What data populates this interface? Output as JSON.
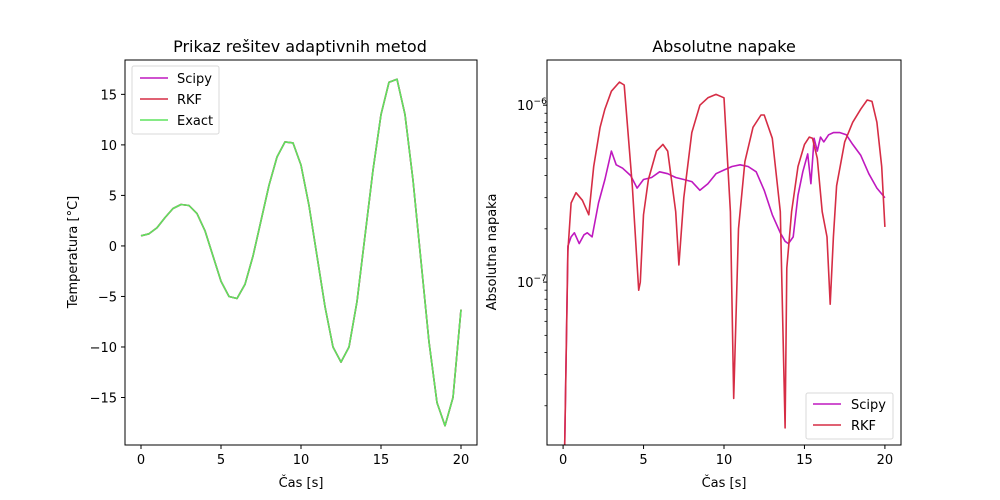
{
  "chart_data": [
    {
      "type": "line",
      "title": "Prikaz rešitev adaptivnih metod",
      "xlabel": "Čas [s]",
      "ylabel": "Temperatura [°C]",
      "xlim": [
        -1,
        21
      ],
      "ylim": [
        -19.7,
        18.4
      ],
      "xticks": [
        0,
        5,
        10,
        15,
        20
      ],
      "yticks": [
        -15,
        -10,
        -5,
        0,
        5,
        10,
        15
      ],
      "grid": false,
      "legend_position": "upper-left",
      "legend": [
        "Scipy",
        "RKF",
        "Exact"
      ],
      "series": [
        {
          "name": "Scipy",
          "color": "#bf19bf",
          "x": [
            0,
            0.5,
            1,
            1.5,
            2,
            2.5,
            3,
            3.5,
            4,
            4.5,
            5,
            5.5,
            6,
            6.5,
            7,
            7.5,
            8,
            8.5,
            9,
            9.5,
            10,
            10.5,
            11,
            11.5,
            12,
            12.5,
            13,
            13.5,
            14,
            14.5,
            15,
            15.5,
            16,
            16.5,
            17,
            17.5,
            18,
            18.5,
            19,
            19.5,
            20
          ],
          "values": [
            1.0,
            1.2,
            1.8,
            2.8,
            3.7,
            4.1,
            4.0,
            3.2,
            1.5,
            -1.0,
            -3.5,
            -5.0,
            -5.2,
            -3.8,
            -1.0,
            2.5,
            6.0,
            8.8,
            10.3,
            10.2,
            8.0,
            4.0,
            -1.0,
            -6.0,
            -10.0,
            -11.5,
            -10.0,
            -5.5,
            1.0,
            7.5,
            13.0,
            16.2,
            16.5,
            13.0,
            6.5,
            -1.5,
            -9.5,
            -15.5,
            -17.8,
            -15.0,
            -6.3
          ]
        },
        {
          "name": "RKF",
          "color": "#d62d45",
          "x": [
            0,
            0.5,
            1,
            1.5,
            2,
            2.5,
            3,
            3.5,
            4,
            4.5,
            5,
            5.5,
            6,
            6.5,
            7,
            7.5,
            8,
            8.5,
            9,
            9.5,
            10,
            10.5,
            11,
            11.5,
            12,
            12.5,
            13,
            13.5,
            14,
            14.5,
            15,
            15.5,
            16,
            16.5,
            17,
            17.5,
            18,
            18.5,
            19,
            19.5,
            20
          ],
          "values": [
            1.0,
            1.2,
            1.8,
            2.8,
            3.7,
            4.1,
            4.0,
            3.2,
            1.5,
            -1.0,
            -3.5,
            -5.0,
            -5.2,
            -3.8,
            -1.0,
            2.5,
            6.0,
            8.8,
            10.3,
            10.2,
            8.0,
            4.0,
            -1.0,
            -6.0,
            -10.0,
            -11.5,
            -10.0,
            -5.5,
            1.0,
            7.5,
            13.0,
            16.2,
            16.5,
            13.0,
            6.5,
            -1.5,
            -9.5,
            -15.5,
            -17.8,
            -15.0,
            -6.3
          ]
        },
        {
          "name": "Exact",
          "color": "#5ee35e",
          "x": [
            0,
            0.5,
            1,
            1.5,
            2,
            2.5,
            3,
            3.5,
            4,
            4.5,
            5,
            5.5,
            6,
            6.5,
            7,
            7.5,
            8,
            8.5,
            9,
            9.5,
            10,
            10.5,
            11,
            11.5,
            12,
            12.5,
            13,
            13.5,
            14,
            14.5,
            15,
            15.5,
            16,
            16.5,
            17,
            17.5,
            18,
            18.5,
            19,
            19.5,
            20
          ],
          "values": [
            1.0,
            1.2,
            1.8,
            2.8,
            3.7,
            4.1,
            4.0,
            3.2,
            1.5,
            -1.0,
            -3.5,
            -5.0,
            -5.2,
            -3.8,
            -1.0,
            2.5,
            6.0,
            8.8,
            10.3,
            10.2,
            8.0,
            4.0,
            -1.0,
            -6.0,
            -10.0,
            -11.5,
            -10.0,
            -5.5,
            1.0,
            7.5,
            13.0,
            16.2,
            16.5,
            13.0,
            6.5,
            -1.5,
            -9.5,
            -15.5,
            -17.8,
            -15.0,
            -6.3
          ]
        }
      ]
    },
    {
      "type": "line",
      "title": "Absolutne napake",
      "xlabel": "Čas [s]",
      "ylabel": "Absolutna napaka",
      "yscale": "log",
      "xlim": [
        -1,
        21
      ],
      "ylim": [
        1.2e-08,
        1.8e-06
      ],
      "xticks": [
        0,
        5,
        10,
        15,
        20
      ],
      "yticks_major": [
        {
          "value": 1e-07,
          "label": "10",
          "exp": "−7"
        },
        {
          "value": 1e-06,
          "label": "10",
          "exp": "−6"
        }
      ],
      "grid": false,
      "legend_position": "lower-right",
      "legend": [
        "Scipy",
        "RKF"
      ],
      "series": [
        {
          "name": "Scipy",
          "color": "#bf19bf",
          "x": [
            0.1,
            0.3,
            0.5,
            0.7,
            1.0,
            1.3,
            1.5,
            1.8,
            2.2,
            2.6,
            3.0,
            3.3,
            3.7,
            4.2,
            4.6,
            5.0,
            5.5,
            6.0,
            6.5,
            7.0,
            7.5,
            8.0,
            8.5,
            9.0,
            9.5,
            10.0,
            10.5,
            11.0,
            11.5,
            12.0,
            12.5,
            13.0,
            13.5,
            13.8,
            14.0,
            14.3,
            14.6,
            14.9,
            15.2,
            15.4,
            15.6,
            15.8,
            16.0,
            16.2,
            16.5,
            16.8,
            17.2,
            17.6,
            18.0,
            18.5,
            19.0,
            19.5,
            20.0
          ],
          "values": [
            1.2e-08,
            1.6e-07,
            1.8e-07,
            1.9e-07,
            1.65e-07,
            1.85e-07,
            1.9e-07,
            1.8e-07,
            2.8e-07,
            3.8e-07,
            5.5e-07,
            4.6e-07,
            4.4e-07,
            4e-07,
            3.4e-07,
            3.8e-07,
            3.9e-07,
            4.2e-07,
            4.1e-07,
            3.9e-07,
            3.8e-07,
            3.7e-07,
            3.3e-07,
            3.6e-07,
            4.1e-07,
            4.3e-07,
            4.5e-07,
            4.6e-07,
            4.5e-07,
            4.2e-07,
            3.3e-07,
            2.4e-07,
            1.9e-07,
            1.7e-07,
            1.65e-07,
            1.8e-07,
            3.1e-07,
            4.2e-07,
            5.3e-07,
            3.6e-07,
            6.5e-07,
            5.5e-07,
            6.6e-07,
            6.2e-07,
            6.8e-07,
            7e-07,
            7e-07,
            6.8e-07,
            6e-07,
            5.2e-07,
            4.1e-07,
            3.4e-07,
            3e-07
          ]
        },
        {
          "name": "RKF",
          "color": "#d62d45",
          "x": [
            0.1,
            0.3,
            0.5,
            0.8,
            1.2,
            1.6,
            1.9,
            2.3,
            2.6,
            3.0,
            3.5,
            3.8,
            4.3,
            4.7,
            4.8,
            5.0,
            5.3,
            5.8,
            6.2,
            6.5,
            7.0,
            7.2,
            7.5,
            8.0,
            8.5,
            9.0,
            9.5,
            10.0,
            10.4,
            10.6,
            10.9,
            11.3,
            11.8,
            12.3,
            12.5,
            13.0,
            13.5,
            13.8,
            13.9,
            14.2,
            14.6,
            15.0,
            15.3,
            15.5,
            15.8,
            16.1,
            16.4,
            16.6,
            16.8,
            17.0,
            17.5,
            18.0,
            18.5,
            18.9,
            19.2,
            19.5,
            19.8,
            20.0
          ],
          "values": [
            1.2e-08,
            1.5e-07,
            2.8e-07,
            3.2e-07,
            2.9e-07,
            2.4e-07,
            4.5e-07,
            7.5e-07,
            9.5e-07,
            1.2e-06,
            1.35e-06,
            1.3e-06,
            3.5e-07,
            9e-08,
            1e-07,
            2.4e-07,
            3.8e-07,
            5.5e-07,
            6e-07,
            5.5e-07,
            2.5e-07,
            1.25e-07,
            3e-07,
            7e-07,
            1e-06,
            1.1e-06,
            1.15e-06,
            1.1e-06,
            2.5e-07,
            2.2e-08,
            2e-07,
            4.8e-07,
            7.5e-07,
            8.8e-07,
            8.8e-07,
            6.5e-07,
            2.5e-07,
            1.5e-08,
            1.2e-07,
            2.5e-07,
            4.5e-07,
            6e-07,
            6.6e-07,
            6.5e-07,
            5e-07,
            2.5e-07,
            1.8e-07,
            7.5e-08,
            1.8e-07,
            3.5e-07,
            6.2e-07,
            8e-07,
            9.5e-07,
            1.07e-06,
            1.05e-06,
            8e-07,
            4.5e-07,
            2.05e-07
          ]
        }
      ]
    }
  ]
}
